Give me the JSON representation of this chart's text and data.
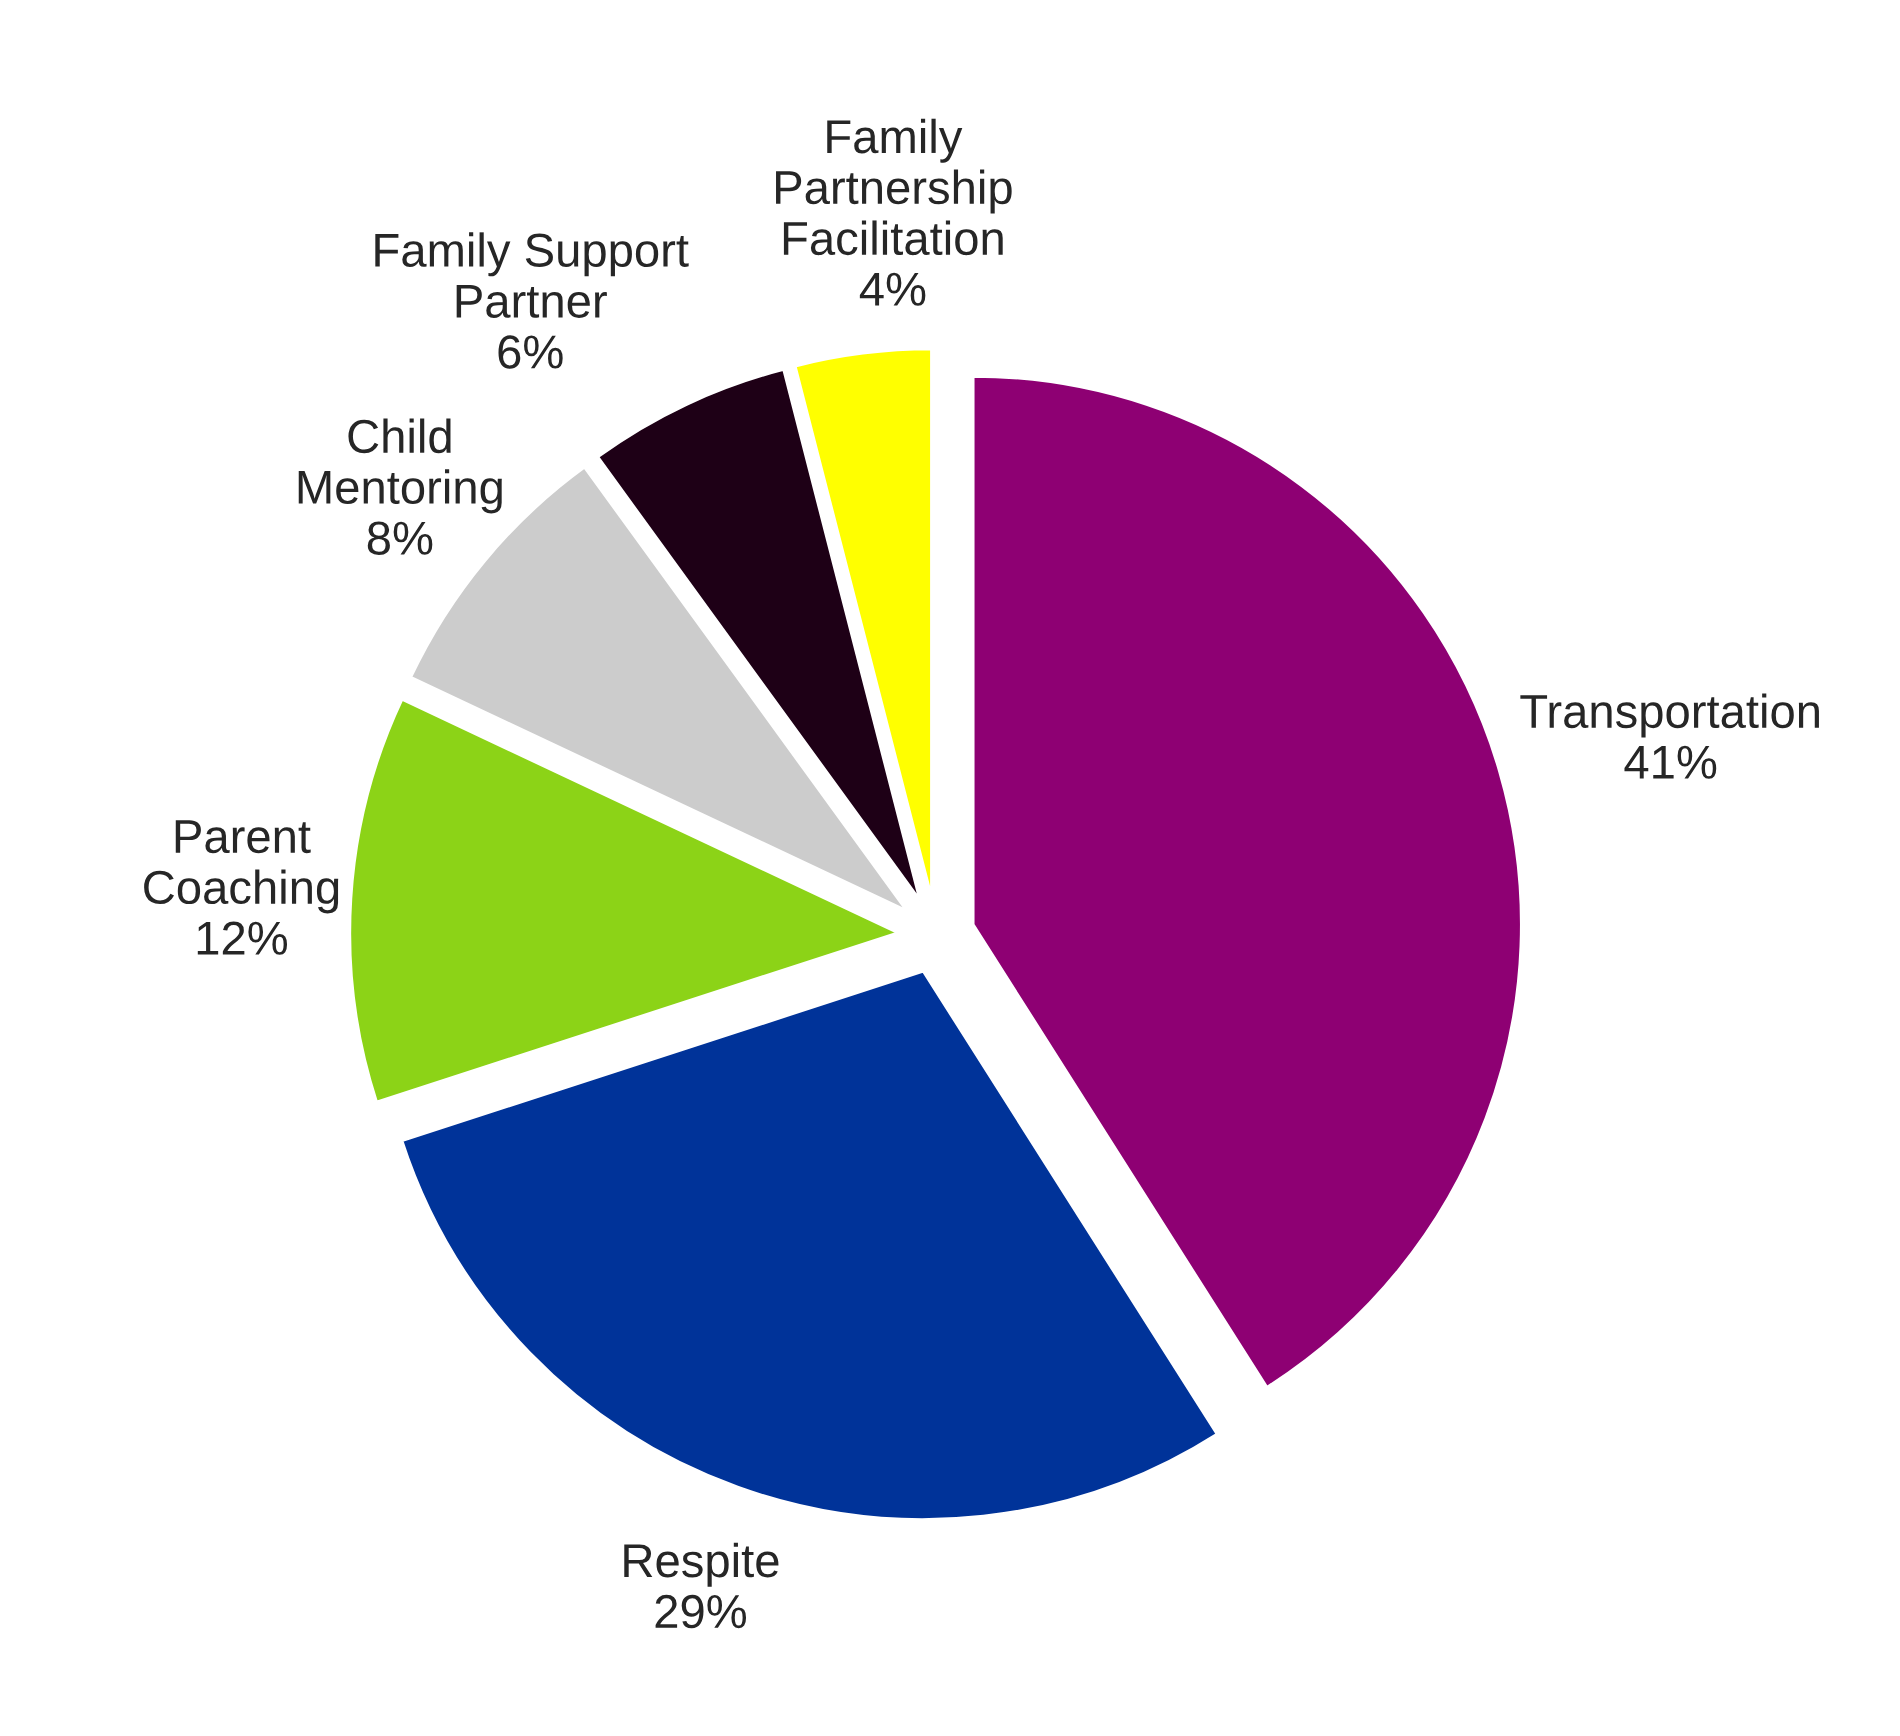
{
  "chart_data": {
    "type": "pie",
    "categories": [
      "Transportation",
      "Respite",
      "Parent\nCoaching",
      "Child\nMentoring",
      "Family Support\nPartner",
      "Family\nPartnership\nFacilitation"
    ],
    "values": [
      41,
      29,
      12,
      8,
      6,
      4
    ],
    "value_labels": [
      "41%",
      "29%",
      "12%",
      "8%",
      "6%",
      "4%"
    ],
    "colors": [
      "#8e0073",
      "#003399",
      "#8cd317",
      "#cccccc",
      "#1e0016",
      "#ffff00"
    ],
    "legend": false
  }
}
